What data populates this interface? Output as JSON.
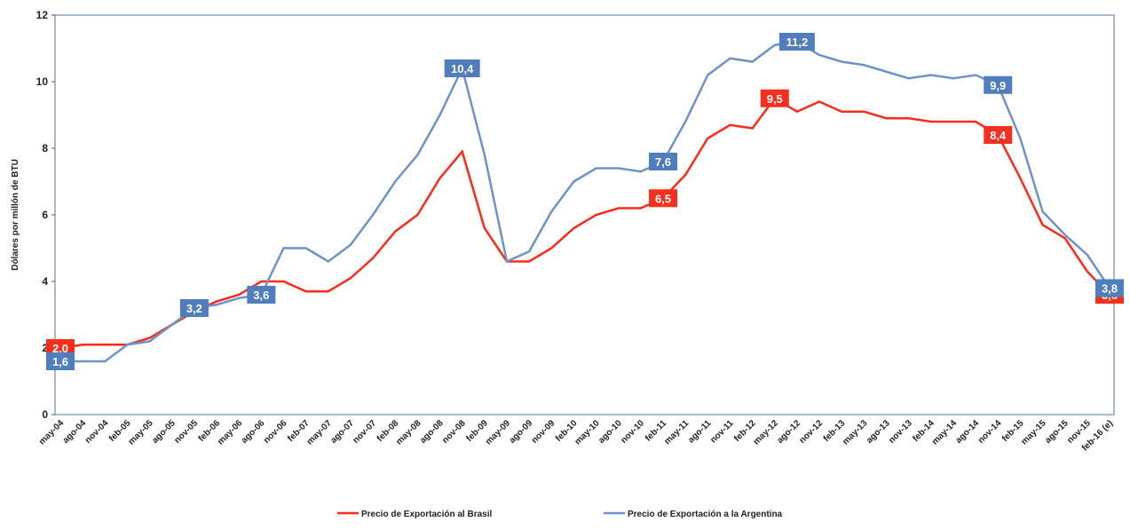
{
  "chart_data": {
    "type": "line",
    "y_label": "Dólares por millón de BTU",
    "categories": [
      "may-04",
      "ago-04",
      "nov-04",
      "feb-05",
      "may-05",
      "ago-05",
      "nov-05",
      "feb-06",
      "may-06",
      "ago-06",
      "nov-06",
      "feb-07",
      "may-07",
      "ago-07",
      "nov-07",
      "feb-08",
      "may-08",
      "ago-08",
      "nov-08",
      "feb-09",
      "may-09",
      "ago-09",
      "nov-09",
      "feb-10",
      "may-10",
      "ago-10",
      "nov-10",
      "feb-11",
      "may-11",
      "ago-11",
      "nov-11",
      "feb-12",
      "may-12",
      "ago-12",
      "nov-12",
      "feb-13",
      "may-13",
      "ago-13",
      "nov-13",
      "feb-14",
      "may-14",
      "ago-14",
      "nov-14",
      "feb-15",
      "may-15",
      "ago-15",
      "nov-15",
      "feb-16 (e)"
    ],
    "series": [
      {
        "name": "Precio de Exportación al Brasil",
        "color": "#ff2a1a",
        "values": [
          2.0,
          2.1,
          2.1,
          2.1,
          2.3,
          2.7,
          3.1,
          3.4,
          3.6,
          4.0,
          4.0,
          3.7,
          3.7,
          4.1,
          4.7,
          5.5,
          6.0,
          7.1,
          7.9,
          5.6,
          4.6,
          4.6,
          5.0,
          5.6,
          6.0,
          6.2,
          6.2,
          6.5,
          7.2,
          8.3,
          8.7,
          8.6,
          9.5,
          9.1,
          9.4,
          9.1,
          9.1,
          8.9,
          8.9,
          8.8,
          8.8,
          8.8,
          8.4,
          7.1,
          5.7,
          5.3,
          4.3,
          3.6
        ],
        "value_labels": [
          "2,0",
          null,
          null,
          null,
          null,
          null,
          null,
          null,
          null,
          null,
          null,
          null,
          null,
          null,
          null,
          null,
          null,
          null,
          null,
          null,
          null,
          null,
          null,
          null,
          null,
          null,
          null,
          "6,5",
          null,
          null,
          null,
          null,
          "9,5",
          null,
          null,
          null,
          null,
          null,
          null,
          null,
          null,
          null,
          "8,4",
          null,
          null,
          null,
          null,
          "3,6"
        ]
      },
      {
        "name": "Precio de Exportación a la Argentina",
        "color": "#6f93c9",
        "values": [
          1.6,
          1.6,
          1.6,
          2.1,
          2.2,
          2.7,
          3.2,
          3.3,
          3.5,
          3.6,
          5.0,
          5.0,
          4.6,
          5.1,
          6.0,
          7.0,
          7.8,
          9.0,
          10.4,
          7.8,
          4.6,
          4.9,
          6.1,
          7.0,
          7.4,
          7.4,
          7.3,
          7.6,
          8.8,
          10.2,
          10.7,
          10.6,
          11.1,
          11.2,
          10.8,
          10.6,
          10.5,
          10.3,
          10.1,
          10.2,
          10.1,
          10.2,
          9.9,
          8.3,
          6.1,
          5.4,
          4.8,
          3.8
        ],
        "value_labels": [
          "1,6",
          null,
          null,
          null,
          null,
          null,
          "3,2",
          null,
          null,
          "3,6",
          null,
          null,
          null,
          null,
          null,
          null,
          null,
          null,
          "10,4",
          null,
          null,
          null,
          null,
          null,
          null,
          null,
          null,
          "7,6",
          null,
          null,
          null,
          null,
          null,
          "11,2",
          null,
          null,
          null,
          null,
          null,
          null,
          null,
          null,
          "9,9",
          null,
          null,
          null,
          null,
          "3,8"
        ]
      }
    ],
    "label_colors": [
      "#f5301e",
      "#4f7dbd"
    ],
    "ylim": [
      0,
      12
    ],
    "yticks": [
      0,
      2,
      4,
      6,
      8,
      10,
      12
    ],
    "grid": false
  }
}
